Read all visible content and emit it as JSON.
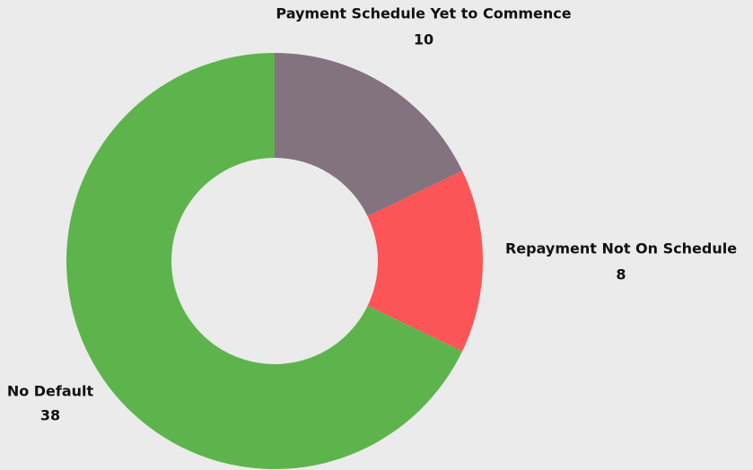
{
  "chart_data": {
    "type": "donut",
    "categories": [
      "Payment Schedule Yet to Commence",
      "Repayment Not On Schedule",
      "No Default"
    ],
    "values": [
      10,
      8,
      38
    ],
    "colors": [
      "#82737f",
      "#fc5558",
      "#5db44d"
    ]
  }
}
